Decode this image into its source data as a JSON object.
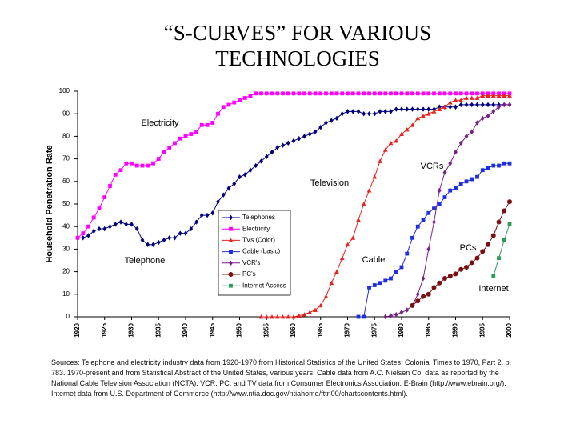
{
  "chart_data": {
    "type": "line",
    "title": "“S-CURVES” FOR VARIOUS",
    "title_line2": "TECHNOLOGIES",
    "y_label": "Household Penetration Rate",
    "xlim": [
      1920,
      2000
    ],
    "xticks": [
      1920,
      1925,
      1930,
      1935,
      1940,
      1945,
      1950,
      1955,
      1960,
      1965,
      1970,
      1975,
      1980,
      1985,
      1990,
      1995,
      2000
    ],
    "ylim": [
      0,
      100
    ],
    "yticks": [
      0,
      10,
      20,
      30,
      40,
      50,
      60,
      70,
      80,
      90,
      100
    ],
    "x": [
      1920,
      1921,
      1922,
      1923,
      1924,
      1925,
      1926,
      1927,
      1928,
      1929,
      1930,
      1931,
      1932,
      1933,
      1934,
      1935,
      1936,
      1937,
      1938,
      1939,
      1940,
      1941,
      1942,
      1943,
      1944,
      1945,
      1946,
      1947,
      1948,
      1949,
      1950,
      1951,
      1952,
      1953,
      1954,
      1955,
      1956,
      1957,
      1958,
      1959,
      1960,
      1961,
      1962,
      1963,
      1964,
      1965,
      1966,
      1967,
      1968,
      1969,
      1970,
      1971,
      1972,
      1973,
      1974,
      1975,
      1976,
      1977,
      1978,
      1979,
      1980,
      1981,
      1982,
      1983,
      1984,
      1985,
      1986,
      1987,
      1988,
      1989,
      1990,
      1991,
      1992,
      1993,
      1994,
      1995,
      1996,
      1997,
      1998,
      1999,
      2000
    ],
    "series": [
      {
        "name": "Telephones",
        "color": "#000080",
        "marker": "diamond",
        "values": [
          35,
          35,
          36,
          38,
          39,
          39,
          40,
          41,
          42,
          41,
          41,
          39,
          34,
          32,
          32,
          33,
          34,
          35,
          35,
          37,
          37,
          39,
          42,
          45,
          45,
          46,
          51,
          54,
          57,
          59,
          62,
          63,
          65,
          67,
          69,
          71,
          73,
          75,
          76,
          77,
          78,
          79,
          80,
          81,
          82,
          84,
          86,
          87,
          88,
          90,
          91,
          91,
          91,
          90,
          90,
          90,
          91,
          91,
          91,
          92,
          92,
          92,
          92,
          92,
          92,
          92,
          92,
          93,
          93,
          93,
          93,
          94,
          94,
          94,
          94,
          94,
          94,
          94,
          94,
          94,
          94
        ]
      },
      {
        "name": "Electricity",
        "color": "#ff00ff",
        "marker": "square",
        "values": [
          35,
          37,
          40,
          44,
          48,
          53,
          58,
          63,
          65,
          68,
          68,
          67,
          67,
          67,
          68,
          70,
          73,
          75,
          77,
          79,
          80,
          81,
          82,
          85,
          85,
          86,
          90,
          93,
          94,
          95,
          96,
          97,
          98,
          99,
          99,
          99,
          99,
          99,
          99,
          99,
          99,
          99,
          99,
          99,
          99,
          99,
          99,
          99,
          99,
          99,
          99,
          99,
          99,
          99,
          99,
          99,
          99,
          99,
          99,
          99,
          99,
          99,
          99,
          99,
          99,
          99,
          99,
          99,
          99,
          99,
          99,
          99,
          99,
          99,
          99,
          99,
          99,
          99,
          99,
          99,
          99
        ]
      },
      {
        "name": "TVs (Color)",
        "color": "#e8231f",
        "marker": "triangle",
        "values": [
          null,
          null,
          null,
          null,
          null,
          null,
          null,
          null,
          null,
          null,
          null,
          null,
          null,
          null,
          null,
          null,
          null,
          null,
          null,
          null,
          null,
          null,
          null,
          null,
          null,
          null,
          null,
          null,
          null,
          null,
          null,
          null,
          null,
          null,
          0,
          0,
          0,
          0,
          0,
          0,
          0,
          0.5,
          1,
          2,
          3,
          5,
          9,
          15,
          20,
          26,
          32,
          35,
          43,
          50,
          56,
          62,
          69,
          74,
          77,
          78,
          81,
          83,
          85,
          88,
          89,
          90,
          91,
          92,
          93,
          95,
          96,
          96,
          97,
          97,
          97,
          98,
          98,
          98,
          98,
          98,
          98
        ]
      },
      {
        "name": "Cable (basic)",
        "color": "#1f2de0",
        "marker": "square",
        "values": [
          null,
          null,
          null,
          null,
          null,
          null,
          null,
          null,
          null,
          null,
          null,
          null,
          null,
          null,
          null,
          null,
          null,
          null,
          null,
          null,
          null,
          null,
          null,
          null,
          null,
          null,
          null,
          null,
          null,
          null,
          null,
          null,
          null,
          null,
          null,
          null,
          null,
          null,
          null,
          null,
          null,
          null,
          null,
          null,
          null,
          null,
          null,
          null,
          null,
          null,
          null,
          null,
          0,
          0,
          13,
          14,
          15,
          16,
          17,
          20,
          22,
          28,
          35,
          40,
          43,
          46,
          48,
          50,
          53,
          56,
          57,
          59,
          60,
          61,
          62,
          65,
          66,
          67,
          67,
          68,
          68
        ]
      },
      {
        "name": "VCR's",
        "color": "#7a1f8a",
        "marker": "diamond",
        "values": [
          null,
          null,
          null,
          null,
          null,
          null,
          null,
          null,
          null,
          null,
          null,
          null,
          null,
          null,
          null,
          null,
          null,
          null,
          null,
          null,
          null,
          null,
          null,
          null,
          null,
          null,
          null,
          null,
          null,
          null,
          null,
          null,
          null,
          null,
          null,
          null,
          null,
          null,
          null,
          null,
          null,
          null,
          null,
          null,
          null,
          null,
          null,
          null,
          null,
          null,
          null,
          null,
          null,
          null,
          null,
          null,
          null,
          0,
          0.5,
          1,
          2,
          3,
          5,
          10,
          17,
          30,
          42,
          56,
          64,
          68,
          73,
          77,
          80,
          82,
          86,
          88,
          89,
          91,
          93,
          94,
          94
        ]
      },
      {
        "name": "PC's",
        "color": "#7a1010",
        "marker": "circle",
        "values": [
          null,
          null,
          null,
          null,
          null,
          null,
          null,
          null,
          null,
          null,
          null,
          null,
          null,
          null,
          null,
          null,
          null,
          null,
          null,
          null,
          null,
          null,
          null,
          null,
          null,
          null,
          null,
          null,
          null,
          null,
          null,
          null,
          null,
          null,
          null,
          null,
          null,
          null,
          null,
          null,
          null,
          null,
          null,
          null,
          null,
          null,
          null,
          null,
          null,
          null,
          null,
          null,
          null,
          null,
          null,
          null,
          null,
          null,
          null,
          null,
          null,
          null,
          5,
          7,
          9,
          10,
          13,
          15,
          17,
          18,
          19,
          21,
          22,
          24,
          26,
          29,
          32,
          36,
          42,
          47,
          51
        ]
      },
      {
        "name": "Internet Access",
        "color": "#2e9a5a",
        "marker": "square",
        "values": [
          null,
          null,
          null,
          null,
          null,
          null,
          null,
          null,
          null,
          null,
          null,
          null,
          null,
          null,
          null,
          null,
          null,
          null,
          null,
          null,
          null,
          null,
          null,
          null,
          null,
          null,
          null,
          null,
          null,
          null,
          null,
          null,
          null,
          null,
          null,
          null,
          null,
          null,
          null,
          null,
          null,
          null,
          null,
          null,
          null,
          null,
          null,
          null,
          null,
          null,
          null,
          null,
          null,
          null,
          null,
          null,
          null,
          null,
          null,
          null,
          null,
          null,
          null,
          null,
          null,
          null,
          null,
          null,
          null,
          null,
          null,
          null,
          null,
          null,
          null,
          null,
          null,
          18,
          26,
          34,
          41
        ]
      }
    ],
    "annotations": [
      "Electricity",
      "Television",
      "VCRs",
      "PCs",
      "Cable",
      "Internet",
      "Telephone"
    ],
    "source": "Sources: Telephone and electricity industry data from 1920-1970 from Historical Statistics of the United States: Colonial Times to 1970, Part 2. p. 783. 1970-present and from Statistical Abstract of the United States, various years. Cable data from A.C. Nielsen Co. data as reported by the National Cable Television Association (NCTA). VCR, PC, and TV data from Consumer Electronics Association. E-Brain (http://www.ebrain.org/). Internet data from U.S. Department of Commerce (http://www.ntia.doc.gov/ntiahome/fttn00/chartscontents.html)."
  }
}
